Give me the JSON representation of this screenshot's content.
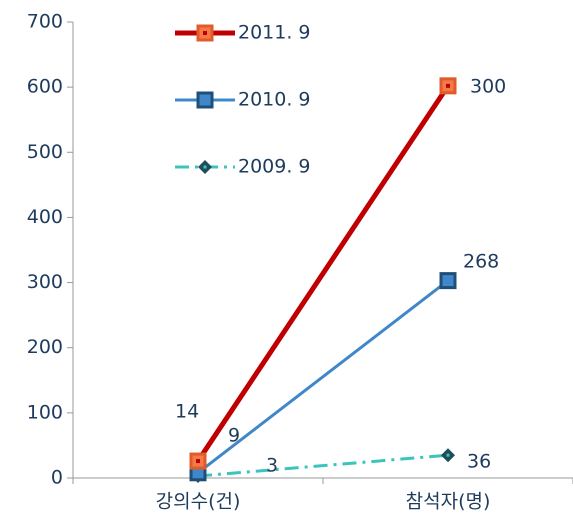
{
  "chart_data": {
    "type": "line",
    "categories": [
      "강의수(건)",
      "참석자(명)"
    ],
    "series": [
      {
        "name": "2011. 9",
        "color": "#c00000",
        "marker_color": "#f47a4a",
        "values": [
          26,
          602
        ]
      },
      {
        "name": "2010. 9",
        "color": "#3f87c8",
        "marker_color": "#1f4e79",
        "values": [
          8,
          303
        ]
      },
      {
        "name": "2009. 9",
        "color": "#3cc4bc",
        "marker_color": "#1f4e5a",
        "values": [
          3,
          35
        ]
      }
    ],
    "annotations": [
      "14",
      "9",
      "3",
      "300",
      "268",
      "36"
    ],
    "ylim": [
      0,
      700
    ],
    "yticks": [
      0,
      100,
      200,
      300,
      400,
      500,
      600,
      700
    ],
    "grid": false
  }
}
